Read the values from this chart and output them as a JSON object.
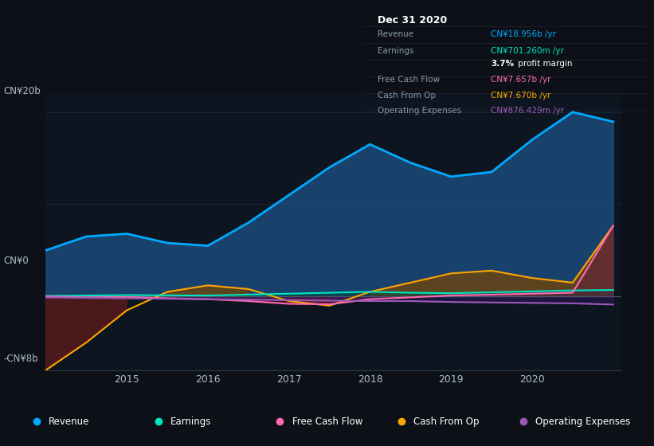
{
  "background_color": "#0d1117",
  "plot_bg_color": "#0d1620",
  "grid_color": "#1e2d3d",
  "zero_line_color": "#4a5568",
  "x_years": [
    2014.0,
    2014.5,
    2015.0,
    2015.5,
    2016.0,
    2016.5,
    2017.0,
    2017.5,
    2018.0,
    2018.5,
    2019.0,
    2019.5,
    2020.0,
    2020.5,
    2021.0
  ],
  "revenue": [
    5.0,
    6.5,
    6.8,
    5.8,
    5.5,
    8.0,
    11.0,
    14.0,
    16.5,
    14.5,
    13.0,
    13.5,
    17.0,
    20.0,
    18.956
  ],
  "earnings": [
    0.05,
    0.1,
    0.15,
    0.12,
    0.1,
    0.2,
    0.3,
    0.4,
    0.5,
    0.4,
    0.35,
    0.45,
    0.55,
    0.65,
    0.701
  ],
  "free_cash_flow": [
    0.0,
    -0.1,
    -0.05,
    -0.2,
    -0.3,
    -0.5,
    -0.8,
    -0.85,
    -0.3,
    -0.1,
    0.1,
    0.2,
    0.3,
    0.4,
    7.657
  ],
  "cash_from_op": [
    -8.0,
    -5.0,
    -1.5,
    0.5,
    1.2,
    0.8,
    -0.5,
    -1.0,
    0.5,
    1.5,
    2.5,
    2.8,
    2.0,
    1.5,
    7.67
  ],
  "operating_expenses": [
    -0.1,
    -0.15,
    -0.2,
    -0.25,
    -0.3,
    -0.35,
    -0.4,
    -0.45,
    -0.5,
    -0.5,
    -0.6,
    -0.65,
    -0.7,
    -0.75,
    -0.876
  ],
  "revenue_color": "#00aaff",
  "revenue_fill": "#1a4a7a",
  "earnings_color": "#00e5c0",
  "free_cash_flow_color": "#ff69b4",
  "cash_from_op_color": "#ffa500",
  "operating_expenses_color": "#9b59b6",
  "ylim": [
    -8,
    22
  ],
  "info_box": {
    "date": "Dec 31 2020",
    "revenue_label": "Revenue",
    "revenue_value": "CN¥18.956b /yr",
    "revenue_color": "#00aaff",
    "earnings_label": "Earnings",
    "earnings_value": "CN¥701.260m /yr",
    "earnings_color": "#00e5c0",
    "fcf_label": "Free Cash Flow",
    "fcf_value": "CN¥7.657b /yr",
    "fcf_color": "#ff69b4",
    "cfo_label": "Cash From Op",
    "cfo_value": "CN¥7.670b /yr",
    "cfo_color": "#ffa500",
    "opex_label": "Operating Expenses",
    "opex_value": "CN¥876.429m /yr",
    "opex_color": "#9b59b6"
  },
  "legend_items": [
    {
      "label": "Revenue",
      "color": "#00aaff"
    },
    {
      "label": "Earnings",
      "color": "#00e5c0"
    },
    {
      "label": "Free Cash Flow",
      "color": "#ff69b4"
    },
    {
      "label": "Cash From Op",
      "color": "#ffa500"
    },
    {
      "label": "Operating Expenses",
      "color": "#9b59b6"
    }
  ]
}
